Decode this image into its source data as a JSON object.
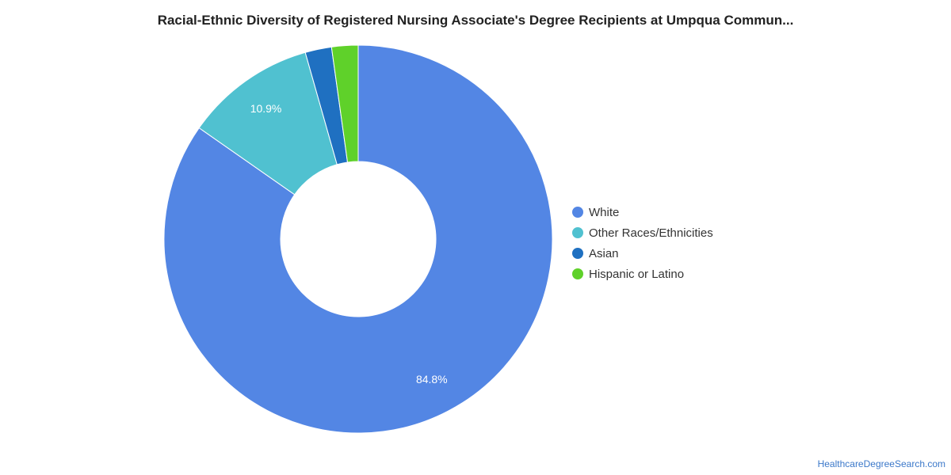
{
  "chart_data": {
    "type": "pie",
    "title": "Racial-Ethnic Diversity of Registered Nursing Associate's Degree Recipients at Umpqua Commun...",
    "slices": [
      {
        "label": "White",
        "value": 84.8,
        "color": "#5386e4",
        "data_label": "84.8%"
      },
      {
        "label": "Other Races/Ethnicities",
        "value": 10.9,
        "color": "#50c1d0",
        "data_label": "10.9%"
      },
      {
        "label": "Asian",
        "value": 2.2,
        "color": "#1f70c1",
        "data_label": ""
      },
      {
        "label": "Hispanic or Latino",
        "value": 2.2,
        "color": "#5fd12a",
        "data_label": ""
      }
    ],
    "legend": "right"
  },
  "footer": {
    "credit": "HealthcareDegreeSearch.com"
  }
}
